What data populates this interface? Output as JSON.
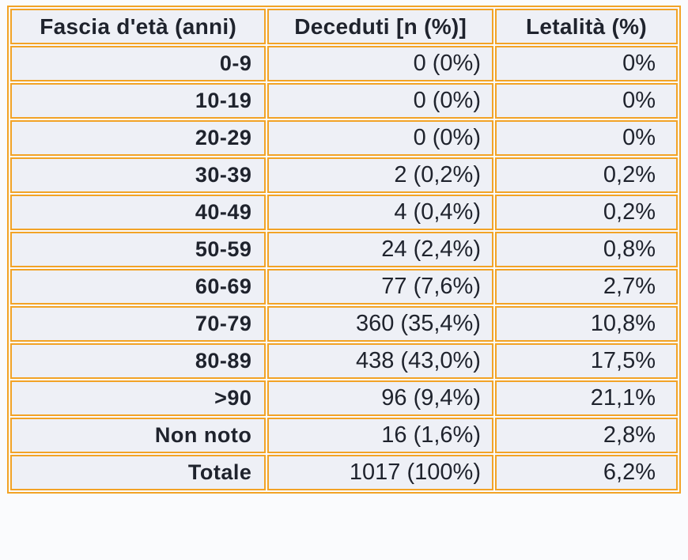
{
  "colors": {
    "border_orange": "#f2a326",
    "cell_background": "#eef0f6",
    "text_dark": "#1f232d",
    "page_background": "#fafbfd"
  },
  "chart_data": {
    "type": "table",
    "title": "",
    "columns": [
      "Fascia d'età (anni)",
      "Deceduti [n (%)]",
      "Letalità (%)"
    ],
    "rows": [
      [
        "0-9",
        "0 (0%)",
        "0%"
      ],
      [
        "10-19",
        "0 (0%)",
        "0%"
      ],
      [
        "20-29",
        "0 (0%)",
        "0%"
      ],
      [
        "30-39",
        "2 (0,2%)",
        "0,2%"
      ],
      [
        "40-49",
        "4 (0,4%)",
        "0,2%"
      ],
      [
        "50-59",
        "24 (2,4%)",
        "0,8%"
      ],
      [
        "60-69",
        "77 (7,6%)",
        "2,7%"
      ],
      [
        "70-79",
        "360 (35,4%)",
        "10,8%"
      ],
      [
        "80-89",
        "438 (43,0%)",
        "17,5%"
      ],
      [
        ">90",
        "96 (9,4%)",
        "21,1%"
      ],
      [
        "Non noto",
        "16 (1,6%)",
        "2,8%"
      ],
      [
        "Totale",
        "1017 (100%)",
        "6,2%"
      ]
    ]
  }
}
